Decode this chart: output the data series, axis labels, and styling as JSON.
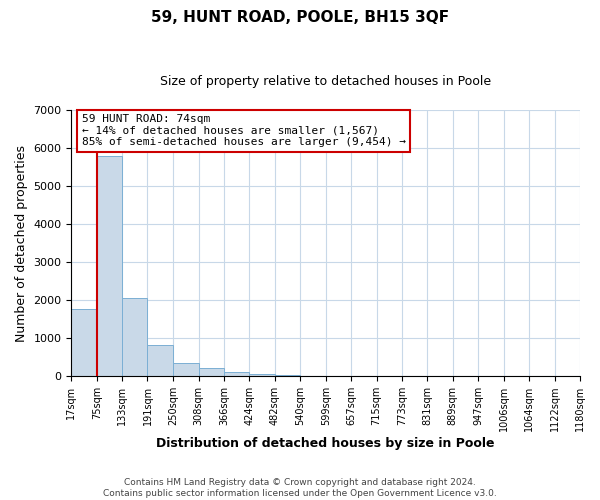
{
  "title": "59, HUNT ROAD, POOLE, BH15 3QF",
  "subtitle": "Size of property relative to detached houses in Poole",
  "xlabel": "Distribution of detached houses by size in Poole",
  "ylabel": "Number of detached properties",
  "bin_edges": [
    17,
    75,
    133,
    191,
    250,
    308,
    366,
    424,
    482,
    540,
    599,
    657,
    715,
    773,
    831,
    889,
    947,
    1006,
    1064,
    1122,
    1180
  ],
  "bin_labels": [
    "17sqm",
    "75sqm",
    "133sqm",
    "191sqm",
    "250sqm",
    "308sqm",
    "366sqm",
    "424sqm",
    "482sqm",
    "540sqm",
    "599sqm",
    "657sqm",
    "715sqm",
    "773sqm",
    "831sqm",
    "889sqm",
    "947sqm",
    "1006sqm",
    "1064sqm",
    "1122sqm",
    "1180sqm"
  ],
  "bar_heights": [
    1760,
    5780,
    2060,
    810,
    360,
    220,
    100,
    60,
    30,
    0,
    0,
    0,
    0,
    0,
    0,
    0,
    0,
    0,
    0,
    0
  ],
  "bar_color": "#c9d9e8",
  "bar_edge_color": "#7bafd4",
  "property_line_x": 75,
  "property_line_color": "#cc0000",
  "ylim": [
    0,
    7000
  ],
  "yticks": [
    0,
    1000,
    2000,
    3000,
    4000,
    5000,
    6000,
    7000
  ],
  "annotation_text": "59 HUNT ROAD: 74sqm\n← 14% of detached houses are smaller (1,567)\n85% of semi-detached houses are larger (9,454) →",
  "annotation_box_color": "#ffffff",
  "annotation_box_edge_color": "#cc0000",
  "footer_line1": "Contains HM Land Registry data © Crown copyright and database right 2024.",
  "footer_line2": "Contains public sector information licensed under the Open Government Licence v3.0.",
  "background_color": "#ffffff",
  "grid_color": "#c8d8e8",
  "fig_bg_color": "#ffffff"
}
